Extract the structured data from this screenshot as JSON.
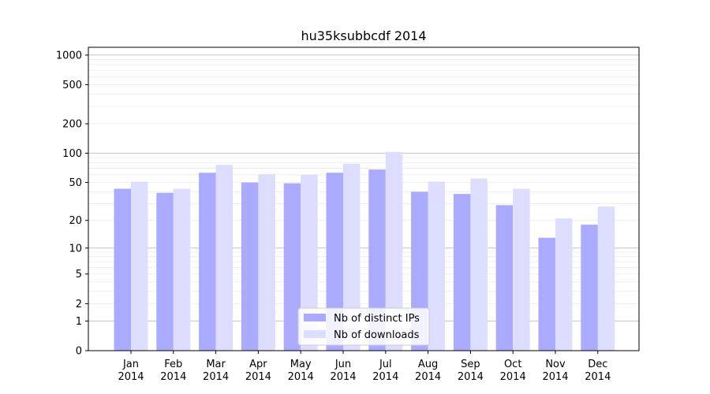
{
  "chart_data": {
    "type": "bar",
    "title": "hu35ksubbcdf 2014",
    "xlabel": "",
    "ylabel": "",
    "categories": [
      {
        "month": "Jan",
        "year": "2014"
      },
      {
        "month": "Feb",
        "year": "2014"
      },
      {
        "month": "Mar",
        "year": "2014"
      },
      {
        "month": "Apr",
        "year": "2014"
      },
      {
        "month": "May",
        "year": "2014"
      },
      {
        "month": "Jun",
        "year": "2014"
      },
      {
        "month": "Jul",
        "year": "2014"
      },
      {
        "month": "Aug",
        "year": "2014"
      },
      {
        "month": "Sep",
        "year": "2014"
      },
      {
        "month": "Oct",
        "year": "2014"
      },
      {
        "month": "Nov",
        "year": "2014"
      },
      {
        "month": "Dec",
        "year": "2014"
      }
    ],
    "series": [
      {
        "name": "Nb of distinct IPs",
        "color": "#aaaaff",
        "values": [
          43,
          39,
          63,
          50,
          49,
          63,
          68,
          40,
          38,
          29,
          13,
          18
        ]
      },
      {
        "name": "Nb of downloads",
        "color": "#ddddff",
        "values": [
          51,
          43,
          76,
          61,
          60,
          78,
          103,
          51,
          55,
          43,
          21,
          28
        ]
      }
    ],
    "yscale": "log(1+y)",
    "ylim": [
      0,
      1200
    ],
    "yticks": [
      "0",
      "1",
      "2",
      "5",
      "10",
      "20",
      "50",
      "100",
      "200",
      "500",
      "1000"
    ],
    "grid": true,
    "legend_position": "bottom-center"
  }
}
